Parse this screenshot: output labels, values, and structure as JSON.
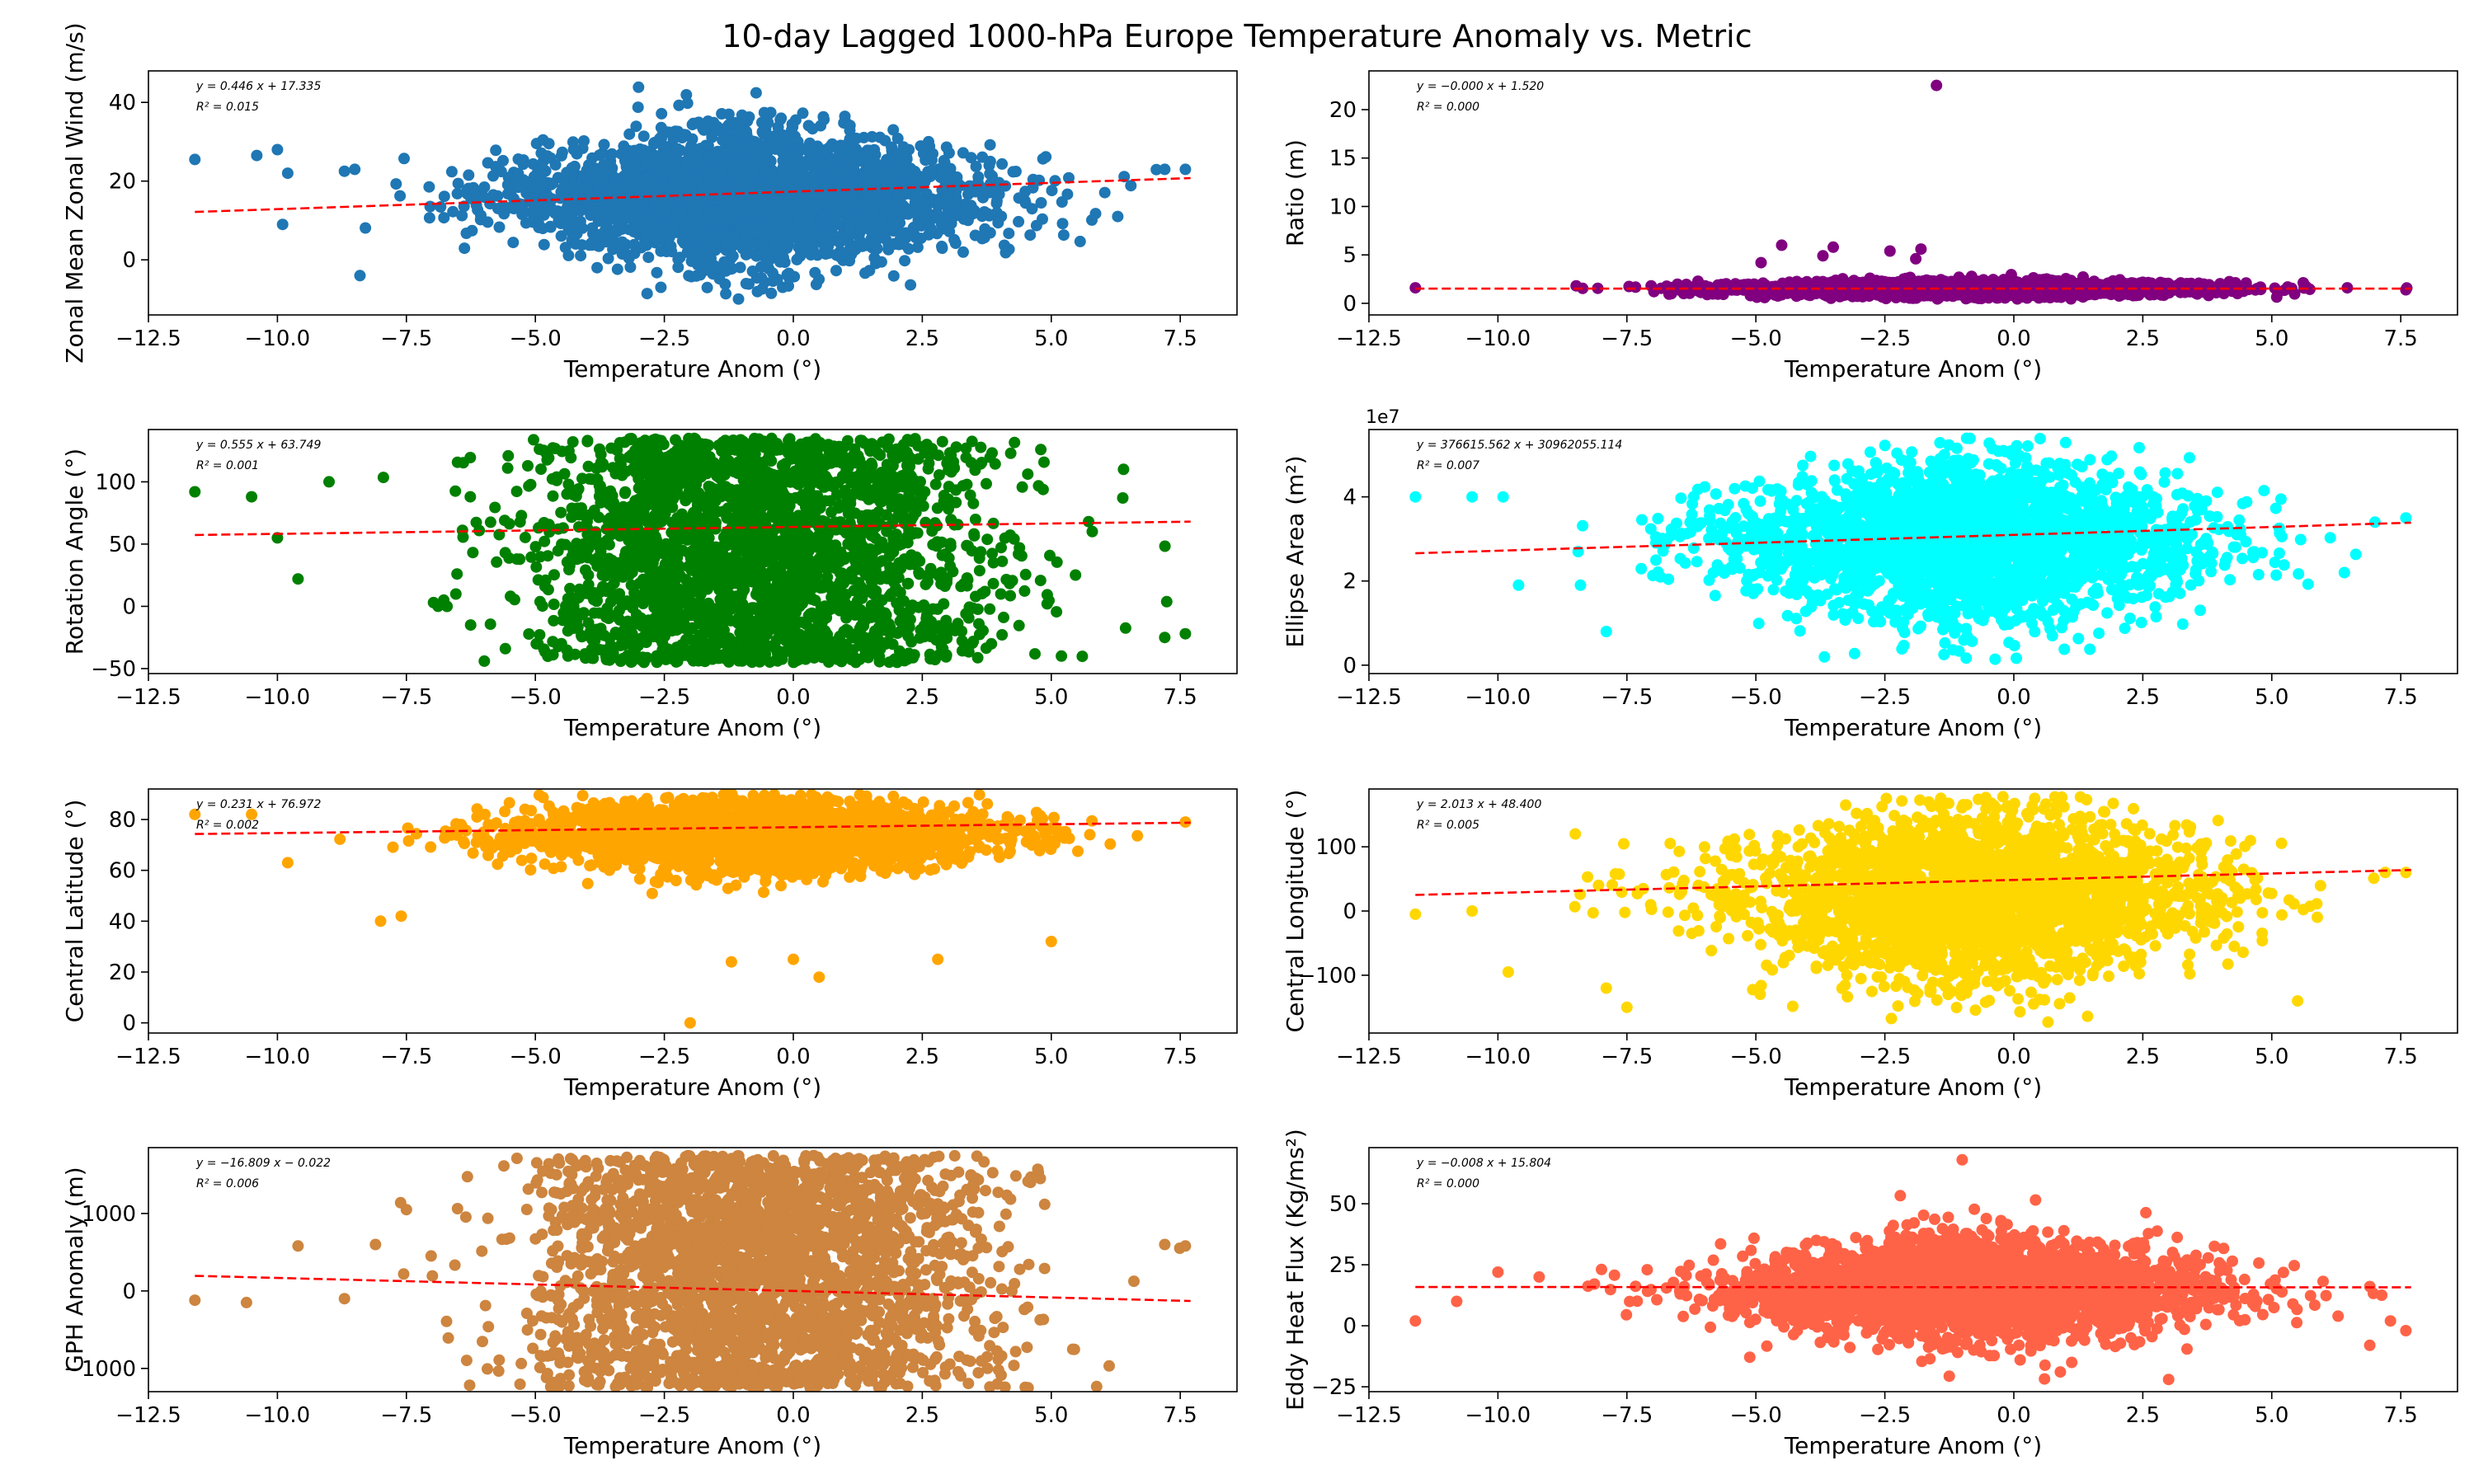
{
  "figure": {
    "title": "10-day Lagged 1000-hPa Europe Temperature Anomaly vs. Metric"
  },
  "chart_data": [
    {
      "type": "scatter",
      "color": "#1f77b4",
      "xlabel": "Temperature Anom (°)",
      "ylabel": "Zonal Mean Zonal Wind (m/s)",
      "xlim": [
        -12.5,
        8.6
      ],
      "ylim": [
        -14,
        48
      ],
      "xticks": [
        -12.5,
        -10.0,
        -7.5,
        -5.0,
        -2.5,
        0.0,
        2.5,
        5.0,
        7.5
      ],
      "yticks": [
        0,
        20,
        40
      ],
      "yscale_label": "",
      "fit": {
        "slope": 0.446,
        "intercept": 17.335,
        "equation": "y = 0.446 x + 17.335",
        "r2": "R² = 0.015"
      },
      "scatter_shape": {
        "x_center": -0.8,
        "x_sd": 2.3,
        "x_min": -11.6,
        "x_max": 7.7,
        "y_center": 16.0,
        "y_sd": 9.5,
        "y_min": -11,
        "y_max": 46
      },
      "outliers": [
        [
          -11.6,
          25.5
        ],
        [
          -10.4,
          26.5
        ],
        [
          -10.0,
          28.0
        ],
        [
          -9.8,
          22.0
        ],
        [
          -8.7,
          22.5
        ],
        [
          -8.5,
          23.0
        ],
        [
          7.6,
          23.0
        ],
        [
          7.2,
          23.0
        ],
        [
          -8.4,
          -4.0
        ],
        [
          -9.9,
          9.0
        ]
      ]
    },
    {
      "type": "scatter",
      "color": "#800080",
      "xlabel": "Temperature Anom (°)",
      "ylabel": "Ratio (m)",
      "xlim": [
        -12.5,
        8.6
      ],
      "ylim": [
        -1.2,
        24.0
      ],
      "xticks": [
        -12.5,
        -10.0,
        -7.5,
        -5.0,
        -2.5,
        0.0,
        2.5,
        5.0,
        7.5
      ],
      "yticks": [
        0,
        5,
        10,
        15,
        20
      ],
      "yscale_label": "",
      "fit": {
        "slope": -0.0,
        "intercept": 1.52,
        "equation": "y = −0.000 x + 1.520",
        "r2": "R² = 0.000"
      },
      "scatter_shape": {
        "x_center": -0.8,
        "x_sd": 2.3,
        "x_min": -11.6,
        "x_max": 7.7,
        "y_center": 1.5,
        "y_sd": 0.45,
        "y_min": 0.4,
        "y_max": 3.4
      },
      "outliers": [
        [
          -1.5,
          22.5
        ],
        [
          -4.5,
          6.0
        ],
        [
          -3.5,
          5.8
        ],
        [
          -2.4,
          5.4
        ],
        [
          -1.8,
          5.6
        ],
        [
          -3.7,
          4.9
        ],
        [
          -4.9,
          4.2
        ],
        [
          -1.9,
          4.6
        ],
        [
          7.6,
          1.4
        ],
        [
          -11.6,
          1.6
        ]
      ]
    },
    {
      "type": "scatter",
      "color": "#008000",
      "xlabel": "Temperature Anom (°)",
      "ylabel": "Rotation Angle (°)",
      "xlim": [
        -12.5,
        8.6
      ],
      "ylim": [
        -54,
        142
      ],
      "xticks": [
        -12.5,
        -10.0,
        -7.5,
        -5.0,
        -2.5,
        0.0,
        2.5,
        5.0,
        7.5
      ],
      "yticks": [
        -50,
        0,
        50,
        100
      ],
      "yscale_label": "",
      "fit": {
        "slope": 0.555,
        "intercept": 63.749,
        "equation": "y = 0.555 x + 63.749",
        "r2": "R² = 0.001"
      },
      "scatter_shape": {
        "x_center": -0.8,
        "x_sd": 2.3,
        "x_min": -11.6,
        "x_max": 7.7,
        "y_center": 45,
        "y_sd": 999,
        "y_min": -45,
        "y_max": 135
      },
      "outliers": [
        [
          -11.6,
          92.0
        ],
        [
          -10.5,
          88.0
        ],
        [
          -10.0,
          55.0
        ],
        [
          -9.6,
          22.0
        ],
        [
          -9.0,
          100.0
        ],
        [
          7.6,
          -22.0
        ],
        [
          7.2,
          -25.0
        ],
        [
          6.4,
          110.0
        ]
      ]
    },
    {
      "type": "scatter",
      "color": "#00ffff",
      "xlabel": "Temperature Anom (°)",
      "ylabel": "Ellipse Area (m²)",
      "xlim": [
        -12.5,
        8.6
      ],
      "ylim": [
        -0.2,
        5.6
      ],
      "xticks": [
        -12.5,
        -10.0,
        -7.5,
        -5.0,
        -2.5,
        0.0,
        2.5,
        5.0,
        7.5
      ],
      "yticks": [
        0,
        2,
        4
      ],
      "yscale_label": "1e7",
      "fit": {
        "slope": 0.0376615562,
        "intercept": 3.0962055114,
        "equation": "y = 376615.562 x + 30962055.114",
        "r2": "R² = 0.007"
      },
      "scatter_shape": {
        "x_center": -0.8,
        "x_sd": 2.3,
        "x_min": -11.6,
        "x_max": 7.7,
        "y_center": 2.9,
        "y_sd": 1.05,
        "y_min": 0.1,
        "y_max": 5.4
      },
      "outliers": [
        [
          -11.6,
          4.0
        ],
        [
          -10.5,
          4.0
        ],
        [
          -9.9,
          4.0
        ],
        [
          -9.6,
          1.9
        ],
        [
          -8.4,
          1.9
        ],
        [
          7.6,
          3.5
        ],
        [
          7.0,
          3.4
        ],
        [
          -7.9,
          0.8
        ]
      ]
    },
    {
      "type": "scatter",
      "color": "#ffa500",
      "xlabel": "Temperature Anom (°)",
      "ylabel": "Central Latitude (°)",
      "xlim": [
        -12.5,
        8.6
      ],
      "ylim": [
        -4,
        92
      ],
      "xticks": [
        -12.5,
        -10.0,
        -7.5,
        -5.0,
        -2.5,
        0.0,
        2.5,
        5.0,
        7.5
      ],
      "yticks": [
        0,
        20,
        40,
        60,
        80
      ],
      "yscale_label": "",
      "fit": {
        "slope": 0.231,
        "intercept": 76.972,
        "equation": "y = 0.231 x + 76.972",
        "r2": "R² = 0.002"
      },
      "scatter_shape": {
        "x_center": -0.8,
        "x_sd": 2.3,
        "x_min": -11.6,
        "x_max": 7.7,
        "y_center": 74,
        "y_sd": 8,
        "y_min": 50,
        "y_max": 90
      },
      "outliers": [
        [
          -2.0,
          0.0
        ],
        [
          -11.6,
          82.0
        ],
        [
          -10.5,
          82.0
        ],
        [
          -9.8,
          63.0
        ],
        [
          -8.0,
          40.0
        ],
        [
          -7.6,
          42.0
        ],
        [
          7.6,
          79.0
        ],
        [
          5.0,
          32.0
        ],
        [
          0.5,
          18.0
        ],
        [
          -1.2,
          24.0
        ],
        [
          0.0,
          25.0
        ],
        [
          2.8,
          25.0
        ]
      ]
    },
    {
      "type": "scatter",
      "color": "#ffd700",
      "xlabel": "Temperature Anom (°)",
      "ylabel": "Central Longitude (°)",
      "xlim": [
        -12.5,
        8.6
      ],
      "ylim": [
        -190,
        190
      ],
      "xticks": [
        -12.5,
        -10.0,
        -7.5,
        -5.0,
        -2.5,
        0.0,
        2.5,
        5.0,
        7.5
      ],
      "yticks": [
        -100,
        0,
        100
      ],
      "yscale_label": "",
      "fit": {
        "slope": 2.013,
        "intercept": 48.4,
        "equation": "y = 2.013 x + 48.400",
        "r2": "R² = 0.005"
      },
      "scatter_shape": {
        "x_center": -0.8,
        "x_sd": 2.3,
        "x_min": -11.6,
        "x_max": 7.7,
        "y_center": 25,
        "y_sd": 75,
        "y_min": -175,
        "y_max": 178
      },
      "outliers": [
        [
          -11.6,
          -5.0
        ],
        [
          -10.5,
          0.0
        ],
        [
          -9.8,
          -95.0
        ],
        [
          -8.5,
          120.0
        ],
        [
          -7.5,
          -150.0
        ],
        [
          -7.9,
          -120.0
        ],
        [
          7.6,
          60.0
        ],
        [
          7.2,
          60.0
        ],
        [
          5.5,
          -140.0
        ]
      ]
    },
    {
      "type": "scatter",
      "color": "#cd853f",
      "xlabel": "Temperature Anom (°)",
      "ylabel": "GPH Anomaly (m)",
      "xlim": [
        -12.5,
        8.6
      ],
      "ylim": [
        -1300,
        1850
      ],
      "xticks": [
        -12.5,
        -10.0,
        -7.5,
        -5.0,
        -2.5,
        0.0,
        2.5,
        5.0,
        7.5
      ],
      "yticks": [
        -1000,
        0,
        1000
      ],
      "yscale_label": "",
      "fit": {
        "slope": -16.809,
        "intercept": -0.022,
        "equation": "y = −16.809 x − 0.022",
        "r2": "R² = 0.006"
      },
      "scatter_shape": {
        "x_center": -0.8,
        "x_sd": 2.3,
        "x_min": -11.6,
        "x_max": 7.7,
        "y_center": 0,
        "y_sd": 520,
        "y_min": -1250,
        "y_max": 1750
      },
      "outliers": [
        [
          -11.6,
          -120.0
        ],
        [
          -10.6,
          -150.0
        ],
        [
          -9.6,
          580.0
        ],
        [
          -8.7,
          -100.0
        ],
        [
          -8.1,
          600.0
        ],
        [
          7.6,
          580.0
        ],
        [
          7.2,
          600.0
        ],
        [
          -7.5,
          1050.0
        ]
      ]
    },
    {
      "type": "scatter",
      "color": "#ff6347",
      "xlabel": "Temperature Anom (°)",
      "ylabel": "Eddy Heat Flux (Kg/ms²)",
      "xlim": [
        -12.5,
        8.6
      ],
      "ylim": [
        -27,
        73
      ],
      "xticks": [
        -12.5,
        -10.0,
        -7.5,
        -5.0,
        -2.5,
        0.0,
        2.5,
        5.0,
        7.5
      ],
      "yticks": [
        -25,
        0,
        25,
        50
      ],
      "yscale_label": "",
      "fit": {
        "slope": -0.008,
        "intercept": 15.804,
        "equation": "y = −0.008 x + 15.804",
        "r2": "R² = 0.000"
      },
      "scatter_shape": {
        "x_center": -0.8,
        "x_sd": 2.3,
        "x_min": -11.6,
        "x_max": 7.7,
        "y_center": 15,
        "y_sd": 11.5,
        "y_min": -22,
        "y_max": 70
      },
      "outliers": [
        [
          -11.6,
          2.0
        ],
        [
          -10.8,
          10.0
        ],
        [
          -10.0,
          22.0
        ],
        [
          -9.2,
          20.0
        ],
        [
          7.6,
          -2.0
        ],
        [
          7.3,
          2.0
        ],
        [
          6.9,
          -8.0
        ],
        [
          3.0,
          -22.0
        ],
        [
          -1.0,
          68.0
        ]
      ]
    }
  ]
}
